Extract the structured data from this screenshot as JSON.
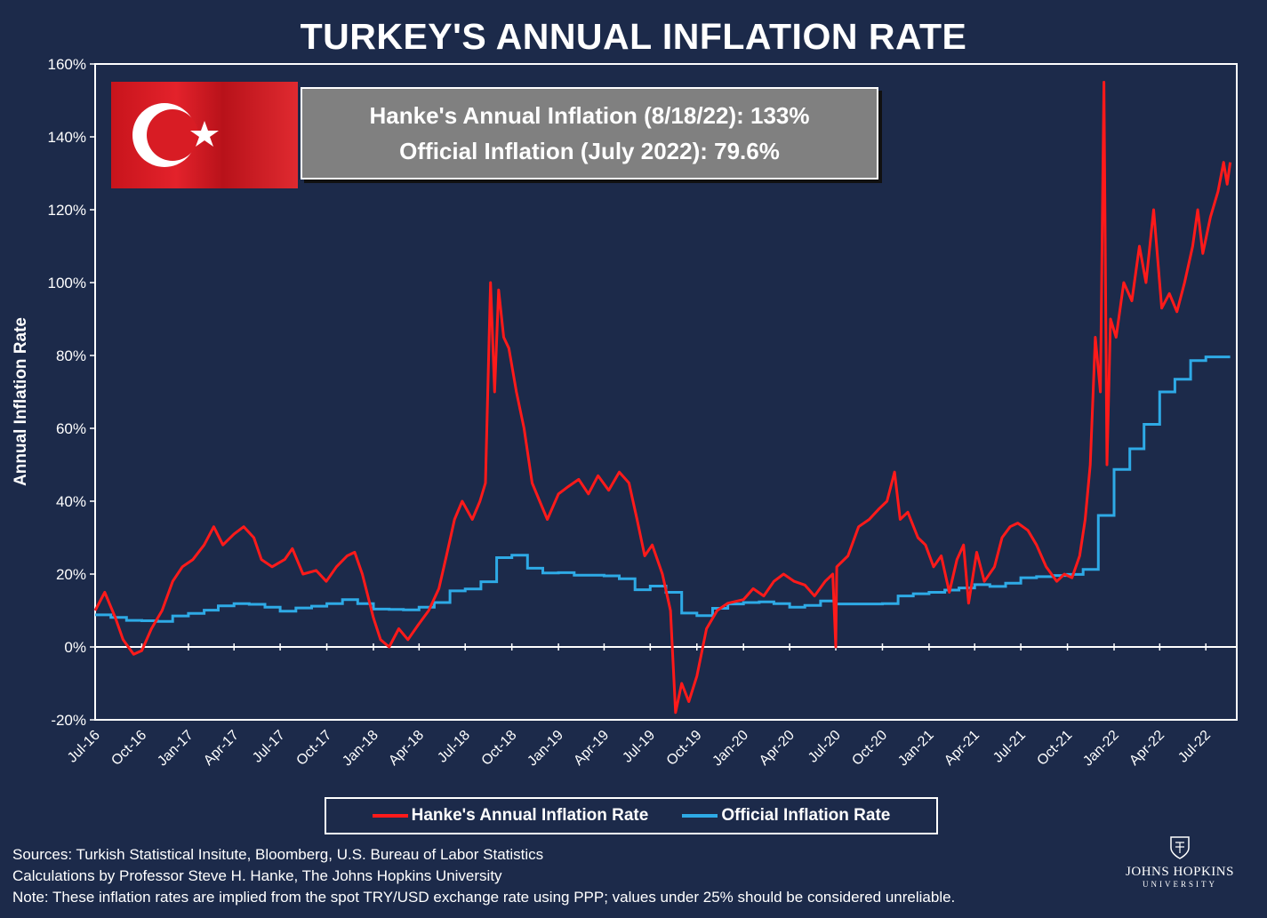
{
  "title": "TURKEY'S ANNUAL INFLATION RATE",
  "info_box": {
    "line1": "Hanke's Annual Inflation (8/18/22): 133%",
    "line2": "Official Inflation (July 2022): 79.6%"
  },
  "notes": {
    "sources": "Sources: Turkish Statistical Insitute, Bloomberg, U.S. Bureau of Labor Statistics",
    "calculations": "Calculations by Professor Steve H. Hanke, The Johns Hopkins University",
    "note": "Note: These inflation rates are implied from the spot TRY/USD exchange rate using PPP; values under 25% should be considered unreliable."
  },
  "logo": {
    "name": "JOHNS HOPKINS",
    "university": "UNIVERSITY"
  },
  "colors": {
    "background": "#1c2a4a",
    "hanke": "#ff1a1a",
    "official": "#2eaae6",
    "axis": "#ffffff"
  },
  "chart_data": {
    "type": "line",
    "title": "TURKEY'S ANNUAL INFLATION RATE",
    "xlabel": "",
    "ylabel": "Annual Inflation Rate",
    "ylim": [
      -20,
      160
    ],
    "xlim": [
      "2016-07-01",
      "2022-08-31"
    ],
    "y_ticks": [
      "-20%",
      "0%",
      "20%",
      "40%",
      "60%",
      "80%",
      "100%",
      "120%",
      "140%",
      "160%"
    ],
    "x_ticks": [
      "Jul-16",
      "Oct-16",
      "Jan-17",
      "Apr-17",
      "Jul-17",
      "Oct-17",
      "Jan-18",
      "Apr-18",
      "Jul-18",
      "Oct-18",
      "Jan-19",
      "Apr-19",
      "Jul-19",
      "Oct-19",
      "Jan-20",
      "Apr-20",
      "Jul-20",
      "Oct-20",
      "Jan-21",
      "Apr-21",
      "Jul-21",
      "Oct-21",
      "Jan-22",
      "Apr-22",
      "Jul-22"
    ],
    "legend_position": "bottom",
    "series": [
      {
        "name": "Hanke's Annual Inflation Rate",
        "color": "#ff1a1a",
        "points": [
          [
            "2016-07-01",
            10
          ],
          [
            "2016-07-20",
            15
          ],
          [
            "2016-08-10",
            8
          ],
          [
            "2016-08-25",
            2
          ],
          [
            "2016-09-15",
            -2
          ],
          [
            "2016-10-01",
            -1
          ],
          [
            "2016-10-20",
            5
          ],
          [
            "2016-11-10",
            10
          ],
          [
            "2016-12-01",
            18
          ],
          [
            "2016-12-20",
            22
          ],
          [
            "2017-01-10",
            24
          ],
          [
            "2017-02-01",
            28
          ],
          [
            "2017-02-20",
            33
          ],
          [
            "2017-03-10",
            28
          ],
          [
            "2017-04-01",
            31
          ],
          [
            "2017-04-20",
            33
          ],
          [
            "2017-05-10",
            30
          ],
          [
            "2017-05-25",
            24
          ],
          [
            "2017-06-15",
            22
          ],
          [
            "2017-07-10",
            24
          ],
          [
            "2017-07-25",
            27
          ],
          [
            "2017-08-15",
            20
          ],
          [
            "2017-09-10",
            21
          ],
          [
            "2017-09-30",
            18
          ],
          [
            "2017-10-20",
            22
          ],
          [
            "2017-11-10",
            25
          ],
          [
            "2017-11-25",
            26
          ],
          [
            "2017-12-10",
            20
          ],
          [
            "2018-01-01",
            8
          ],
          [
            "2018-01-15",
            2
          ],
          [
            "2018-02-01",
            0
          ],
          [
            "2018-02-20",
            5
          ],
          [
            "2018-03-10",
            2
          ],
          [
            "2018-03-30",
            6
          ],
          [
            "2018-04-20",
            10
          ],
          [
            "2018-05-10",
            16
          ],
          [
            "2018-05-25",
            25
          ],
          [
            "2018-06-10",
            35
          ],
          [
            "2018-06-25",
            40
          ],
          [
            "2018-07-15",
            35
          ],
          [
            "2018-07-30",
            40
          ],
          [
            "2018-08-10",
            45
          ],
          [
            "2018-08-20",
            100
          ],
          [
            "2018-08-28",
            70
          ],
          [
            "2018-09-05",
            98
          ],
          [
            "2018-09-15",
            85
          ],
          [
            "2018-09-25",
            82
          ],
          [
            "2018-10-10",
            70
          ],
          [
            "2018-10-25",
            60
          ],
          [
            "2018-11-10",
            45
          ],
          [
            "2018-11-25",
            40
          ],
          [
            "2018-12-10",
            35
          ],
          [
            "2019-01-01",
            42
          ],
          [
            "2019-01-20",
            44
          ],
          [
            "2019-02-10",
            46
          ],
          [
            "2019-03-01",
            42
          ],
          [
            "2019-03-20",
            47
          ],
          [
            "2019-04-10",
            43
          ],
          [
            "2019-05-01",
            48
          ],
          [
            "2019-05-20",
            45
          ],
          [
            "2019-06-05",
            35
          ],
          [
            "2019-06-20",
            25
          ],
          [
            "2019-07-05",
            28
          ],
          [
            "2019-07-25",
            20
          ],
          [
            "2019-08-10",
            10
          ],
          [
            "2019-08-20",
            -18
          ],
          [
            "2019-09-01",
            -10
          ],
          [
            "2019-09-15",
            -15
          ],
          [
            "2019-10-01",
            -8
          ],
          [
            "2019-10-20",
            5
          ],
          [
            "2019-11-10",
            10
          ],
          [
            "2019-12-01",
            12
          ],
          [
            "2020-01-01",
            13
          ],
          [
            "2020-01-20",
            16
          ],
          [
            "2020-02-10",
            14
          ],
          [
            "2020-03-01",
            18
          ],
          [
            "2020-03-20",
            20
          ],
          [
            "2020-04-10",
            18
          ],
          [
            "2020-05-01",
            17
          ],
          [
            "2020-05-20",
            14
          ],
          [
            "2020-06-10",
            18
          ],
          [
            "2020-06-25",
            20
          ],
          [
            "2020-07-01",
            0
          ],
          [
            "2020-07-03",
            22
          ],
          [
            "2020-07-25",
            25
          ],
          [
            "2020-08-15",
            33
          ],
          [
            "2020-09-05",
            35
          ],
          [
            "2020-09-25",
            38
          ],
          [
            "2020-10-10",
            40
          ],
          [
            "2020-10-25",
            48
          ],
          [
            "2020-11-05",
            35
          ],
          [
            "2020-11-20",
            37
          ],
          [
            "2020-12-10",
            30
          ],
          [
            "2020-12-25",
            28
          ],
          [
            "2021-01-10",
            22
          ],
          [
            "2021-01-25",
            25
          ],
          [
            "2021-02-10",
            15
          ],
          [
            "2021-02-25",
            24
          ],
          [
            "2021-03-10",
            28
          ],
          [
            "2021-03-20",
            12
          ],
          [
            "2021-04-05",
            26
          ],
          [
            "2021-04-20",
            18
          ],
          [
            "2021-05-10",
            22
          ],
          [
            "2021-05-25",
            30
          ],
          [
            "2021-06-10",
            33
          ],
          [
            "2021-06-25",
            34
          ],
          [
            "2021-07-15",
            32
          ],
          [
            "2021-08-01",
            28
          ],
          [
            "2021-08-20",
            22
          ],
          [
            "2021-09-10",
            18
          ],
          [
            "2021-09-25",
            20
          ],
          [
            "2021-10-10",
            19
          ],
          [
            "2021-10-25",
            25
          ],
          [
            "2021-11-05",
            35
          ],
          [
            "2021-11-15",
            50
          ],
          [
            "2021-11-25",
            85
          ],
          [
            "2021-12-05",
            70
          ],
          [
            "2021-12-12",
            155
          ],
          [
            "2021-12-18",
            50
          ],
          [
            "2021-12-25",
            90
          ],
          [
            "2022-01-05",
            85
          ],
          [
            "2022-01-20",
            100
          ],
          [
            "2022-02-05",
            95
          ],
          [
            "2022-02-20",
            110
          ],
          [
            "2022-03-05",
            100
          ],
          [
            "2022-03-20",
            120
          ],
          [
            "2022-04-05",
            93
          ],
          [
            "2022-04-20",
            97
          ],
          [
            "2022-05-05",
            92
          ],
          [
            "2022-05-20",
            100
          ],
          [
            "2022-06-05",
            110
          ],
          [
            "2022-06-15",
            120
          ],
          [
            "2022-06-25",
            108
          ],
          [
            "2022-07-10",
            118
          ],
          [
            "2022-07-25",
            125
          ],
          [
            "2022-08-05",
            133
          ],
          [
            "2022-08-12",
            127
          ],
          [
            "2022-08-18",
            133
          ]
        ]
      },
      {
        "name": "Official Inflation Rate",
        "color": "#2eaae6",
        "step_points": [
          [
            "2016-07-01",
            8.8
          ],
          [
            "2016-08-01",
            8.1
          ],
          [
            "2016-09-01",
            7.3
          ],
          [
            "2016-10-01",
            7.2
          ],
          [
            "2016-11-01",
            7.0
          ],
          [
            "2016-12-01",
            8.5
          ],
          [
            "2017-01-01",
            9.2
          ],
          [
            "2017-02-01",
            10.1
          ],
          [
            "2017-03-01",
            11.3
          ],
          [
            "2017-04-01",
            11.9
          ],
          [
            "2017-05-01",
            11.7
          ],
          [
            "2017-06-01",
            10.9
          ],
          [
            "2017-07-01",
            9.8
          ],
          [
            "2017-08-01",
            10.7
          ],
          [
            "2017-09-01",
            11.2
          ],
          [
            "2017-10-01",
            11.9
          ],
          [
            "2017-11-01",
            13.0
          ],
          [
            "2017-12-01",
            11.9
          ],
          [
            "2018-01-01",
            10.4
          ],
          [
            "2018-02-01",
            10.3
          ],
          [
            "2018-03-01",
            10.2
          ],
          [
            "2018-04-01",
            10.9
          ],
          [
            "2018-05-01",
            12.2
          ],
          [
            "2018-06-01",
            15.4
          ],
          [
            "2018-07-01",
            15.9
          ],
          [
            "2018-08-01",
            17.9
          ],
          [
            "2018-09-01",
            24.5
          ],
          [
            "2018-10-01",
            25.2
          ],
          [
            "2018-11-01",
            21.6
          ],
          [
            "2018-12-01",
            20.3
          ],
          [
            "2019-01-01",
            20.4
          ],
          [
            "2019-02-01",
            19.7
          ],
          [
            "2019-03-01",
            19.7
          ],
          [
            "2019-04-01",
            19.5
          ],
          [
            "2019-05-01",
            18.7
          ],
          [
            "2019-06-01",
            15.7
          ],
          [
            "2019-07-01",
            16.7
          ],
          [
            "2019-08-01",
            15.0
          ],
          [
            "2019-09-01",
            9.3
          ],
          [
            "2019-10-01",
            8.6
          ],
          [
            "2019-11-01",
            10.6
          ],
          [
            "2019-12-01",
            11.8
          ],
          [
            "2020-01-01",
            12.2
          ],
          [
            "2020-02-01",
            12.4
          ],
          [
            "2020-03-01",
            11.9
          ],
          [
            "2020-04-01",
            10.9
          ],
          [
            "2020-05-01",
            11.4
          ],
          [
            "2020-06-01",
            12.6
          ],
          [
            "2020-07-01",
            11.8
          ],
          [
            "2020-08-01",
            11.8
          ],
          [
            "2020-09-01",
            11.8
          ],
          [
            "2020-10-01",
            11.9
          ],
          [
            "2020-11-01",
            14.0
          ],
          [
            "2020-12-01",
            14.6
          ],
          [
            "2021-01-01",
            15.0
          ],
          [
            "2021-02-01",
            15.6
          ],
          [
            "2021-03-01",
            16.2
          ],
          [
            "2021-04-01",
            17.1
          ],
          [
            "2021-05-01",
            16.6
          ],
          [
            "2021-06-01",
            17.5
          ],
          [
            "2021-07-01",
            19.0
          ],
          [
            "2021-08-01",
            19.3
          ],
          [
            "2021-09-01",
            19.6
          ],
          [
            "2021-10-01",
            19.9
          ],
          [
            "2021-11-01",
            21.3
          ],
          [
            "2021-12-01",
            36.1
          ],
          [
            "2022-01-01",
            48.7
          ],
          [
            "2022-02-01",
            54.4
          ],
          [
            "2022-03-01",
            61.1
          ],
          [
            "2022-04-01",
            70.0
          ],
          [
            "2022-05-01",
            73.5
          ],
          [
            "2022-06-01",
            78.6
          ],
          [
            "2022-07-01",
            79.6
          ],
          [
            "2022-08-18",
            79.6
          ]
        ]
      }
    ]
  },
  "legend": [
    {
      "label": "Hanke's Annual Inflation Rate",
      "color": "#ff1a1a"
    },
    {
      "label": "Official Inflation Rate",
      "color": "#2eaae6"
    }
  ]
}
